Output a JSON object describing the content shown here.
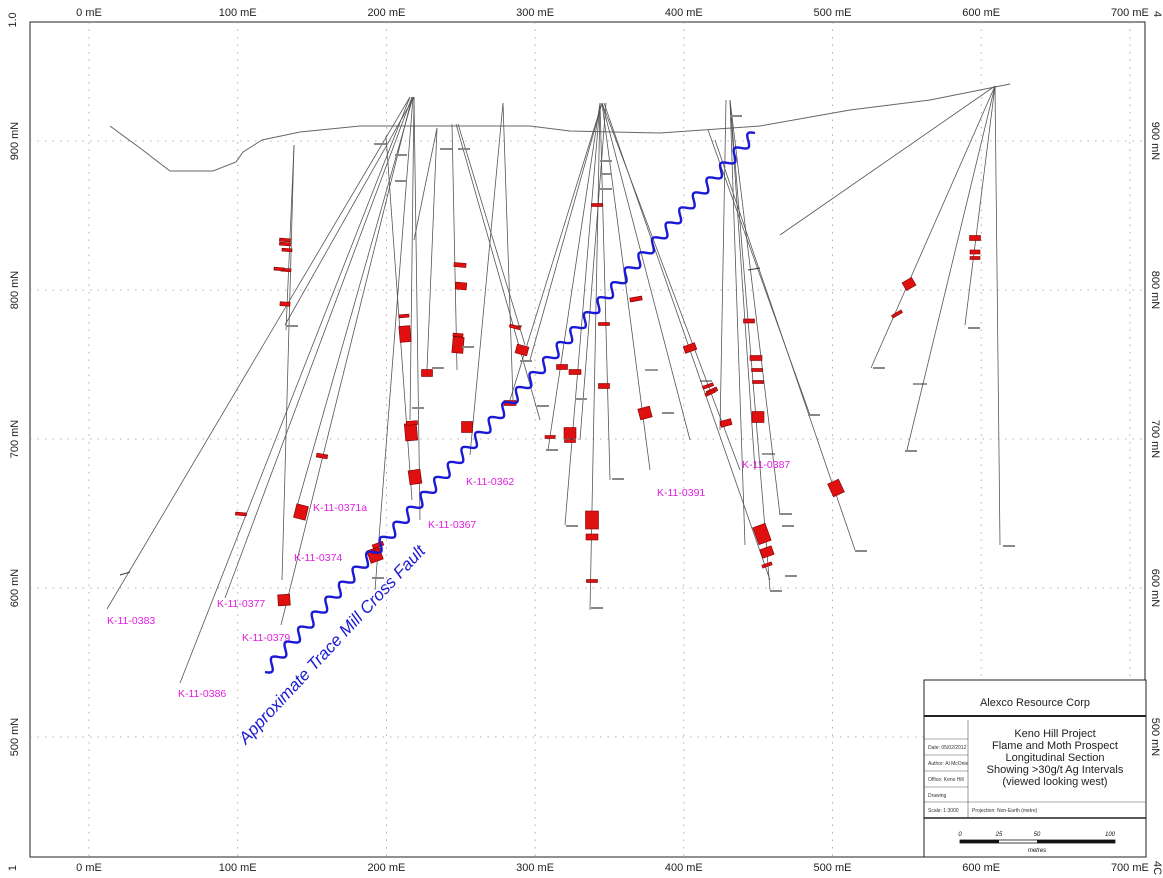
{
  "map": {
    "x_axis": {
      "unit_suffix": "mE",
      "ticks": [
        "0 mE",
        "100 mE",
        "200 mE",
        "300 mE",
        "400 mE",
        "500 mE",
        "600 mE",
        "700 mE"
      ],
      "values": [
        0,
        100,
        200,
        300,
        400,
        500,
        600,
        700
      ]
    },
    "y_axis": {
      "unit_suffix": "mN",
      "ticks": [
        "900 mN",
        "800 mN",
        "700 mN",
        "600 mN",
        "500 mN"
      ],
      "values": [
        900,
        800,
        700,
        600,
        500
      ]
    },
    "corner_marks": {
      "top_left": "1.0",
      "top_right": "4",
      "bottom_left": "1",
      "bottom_right": "4C"
    },
    "fault_label": "Approximate Trace Mill Cross Fault",
    "drillhole_labels": [
      "K-11-0383",
      "K-11-0386",
      "K-11-0377",
      "K-11-0379",
      "K-11-0374",
      "K-11-0371a",
      "K-11-0367",
      "K-11-0362",
      "K-11-0391",
      "K-11-0387"
    ],
    "colors": {
      "intercept": "#e01010",
      "labels": "#e01ee0",
      "fault": "#1a1ad6",
      "grid": "#888888"
    }
  },
  "title_block": {
    "company": "Alexco Resource Corp",
    "title_lines": [
      "Keno Hill Project",
      "Flame and Moth Prospect",
      "Longitudinal Section",
      "Showing >30g/t Ag Intervals",
      "(viewed looking west)"
    ],
    "date": "Date: 05/02/2012",
    "author": "Author: Al McOnie",
    "office": "Office: Keno Hill",
    "drawing": "Drawing",
    "scale": "Scale: 1:3000",
    "projection": "Projection: Non-Earth (metre)",
    "scale_bar_ticks": [
      "0",
      "25",
      "50",
      "100"
    ],
    "scale_bar_unit": "metres"
  }
}
